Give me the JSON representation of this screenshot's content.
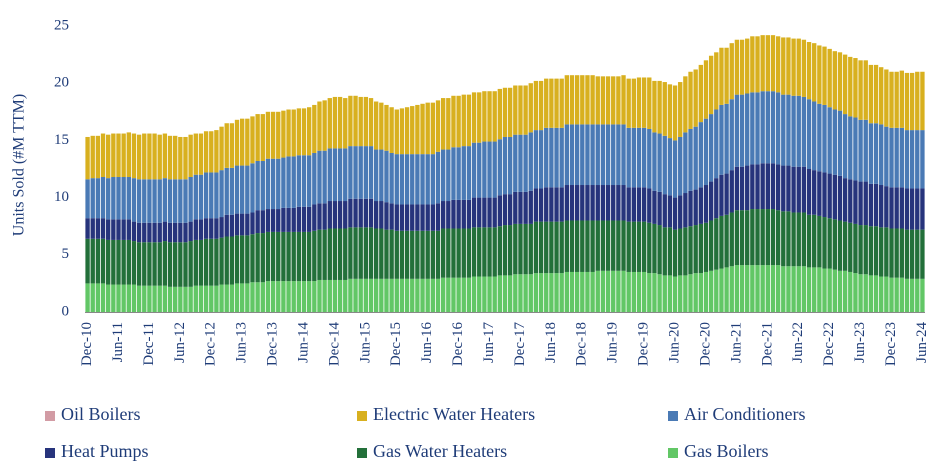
{
  "chart_data": {
    "type": "stacked_bar",
    "y_label": "Units Sold (#M TTM)",
    "ylim": [
      0,
      25
    ],
    "yticks": [
      0,
      5,
      10,
      15,
      20,
      25
    ],
    "categories": [
      "Dec-10",
      null,
      null,
      null,
      null,
      null,
      "Jun-11",
      null,
      null,
      null,
      null,
      null,
      "Dec-11",
      null,
      null,
      null,
      null,
      null,
      "Jun-12",
      null,
      null,
      null,
      null,
      null,
      "Dec-12",
      null,
      null,
      null,
      null,
      null,
      "Jun-13",
      null,
      null,
      null,
      null,
      null,
      "Dec-13",
      null,
      null,
      null,
      null,
      null,
      "Jun-14",
      null,
      null,
      null,
      null,
      null,
      "Dec-14",
      null,
      null,
      null,
      null,
      null,
      "Jun-15",
      null,
      null,
      null,
      null,
      null,
      "Dec-15",
      null,
      null,
      null,
      null,
      null,
      "Jun-16",
      null,
      null,
      null,
      null,
      null,
      "Dec-16",
      null,
      null,
      null,
      null,
      null,
      "Jun-17",
      null,
      null,
      null,
      null,
      null,
      "Dec-17",
      null,
      null,
      null,
      null,
      null,
      "Jun-18",
      null,
      null,
      null,
      null,
      null,
      "Dec-18",
      null,
      null,
      null,
      null,
      null,
      "Jun-19",
      null,
      null,
      null,
      null,
      null,
      "Dec-19",
      null,
      null,
      null,
      null,
      null,
      "Jun-20",
      null,
      null,
      null,
      null,
      null,
      "Dec-20",
      null,
      null,
      null,
      null,
      null,
      "Jun-21",
      null,
      null,
      null,
      null,
      null,
      "Dec-21",
      null,
      null,
      null,
      null,
      null,
      "Jun-22",
      null,
      null,
      null,
      null,
      null,
      "Dec-22",
      null,
      null,
      null,
      null,
      null,
      "Jun-23",
      null,
      null,
      null,
      null,
      null,
      "Dec-23",
      null,
      null,
      null,
      null,
      null,
      "Jun-24"
    ],
    "series": [
      {
        "name": "Oil Boilers",
        "color": "#d29ba4",
        "values": [
          0,
          0,
          0,
          0,
          0,
          0,
          0,
          0,
          0,
          0,
          0,
          0,
          0,
          0,
          0,
          0,
          0,
          0,
          0,
          0,
          0,
          0,
          0,
          0,
          0,
          0,
          0,
          0,
          0,
          0,
          0,
          0,
          0,
          0,
          0,
          0,
          0,
          0,
          0,
          0,
          0,
          0,
          0,
          0,
          0,
          0,
          0,
          0,
          0,
          0,
          0,
          0,
          0,
          0,
          0,
          0,
          0,
          0,
          0,
          0,
          0,
          0,
          0,
          0,
          0,
          0,
          0,
          0,
          0,
          0,
          0,
          0,
          0,
          0,
          0,
          0,
          0,
          0,
          0,
          0,
          0,
          0,
          0,
          0,
          0,
          0,
          0,
          0,
          0,
          0,
          0,
          0,
          0,
          0,
          0,
          0,
          0,
          0,
          0,
          0,
          0,
          0,
          0,
          0,
          0,
          0,
          0,
          0,
          0,
          0,
          0,
          0,
          0,
          0,
          0,
          0,
          0,
          0,
          0,
          0,
          0,
          0,
          0,
          0,
          0,
          0,
          0,
          0,
          0,
          0,
          0,
          0,
          0,
          0,
          0,
          0,
          0,
          0,
          0,
          0,
          0,
          0,
          0,
          0,
          0,
          0,
          0,
          0,
          0,
          0,
          0,
          0,
          0,
          0,
          0,
          0,
          0,
          0,
          0,
          0,
          0,
          0,
          0
        ]
      },
      {
        "name": "Electric Water Heaters",
        "color": "#d8b01f",
        "values": [
          3.7,
          3.7,
          3.7,
          3.8,
          3.8,
          3.8,
          3.8,
          3.8,
          3.9,
          3.9,
          3.9,
          4.0,
          4.0,
          4.0,
          3.9,
          3.9,
          3.8,
          3.8,
          3.7,
          3.7,
          3.7,
          3.6,
          3.6,
          3.6,
          3.6,
          3.7,
          3.8,
          3.9,
          3.9,
          4.0,
          4.1,
          4.1,
          4.1,
          4.1,
          4.1,
          4.1,
          4.1,
          4.1,
          4.1,
          4.1,
          4.1,
          4.1,
          4.1,
          4.2,
          4.2,
          4.3,
          4.4,
          4.4,
          4.5,
          4.5,
          4.4,
          4.4,
          4.4,
          4.3,
          4.3,
          4.2,
          4.2,
          4.1,
          4.0,
          4.0,
          3.9,
          4.0,
          4.1,
          4.2,
          4.3,
          4.4,
          4.5,
          4.5,
          4.5,
          4.5,
          4.5,
          4.5,
          4.5,
          4.5,
          4.5,
          4.4,
          4.4,
          4.4,
          4.4,
          4.4,
          4.4,
          4.3,
          4.3,
          4.3,
          4.3,
          4.3,
          4.3,
          4.3,
          4.3,
          4.3,
          4.3,
          4.3,
          4.3,
          4.3,
          4.3,
          4.3,
          4.3,
          4.3,
          4.3,
          4.2,
          4.2,
          4.2,
          4.2,
          4.2,
          4.3,
          4.3,
          4.3,
          4.4,
          4.4,
          4.5,
          4.5,
          4.6,
          4.7,
          4.7,
          4.8,
          4.8,
          4.9,
          5.0,
          5.0,
          5.0,
          5.1,
          5.1,
          5.0,
          5.0,
          4.9,
          4.9,
          4.8,
          4.8,
          4.8,
          4.9,
          4.9,
          4.9,
          4.9,
          4.9,
          4.9,
          5.0,
          5.0,
          5.0,
          5.0,
          5.0,
          5.0,
          5.1,
          5.1,
          5.1,
          5.1,
          5.1,
          5.1,
          5.2,
          5.2,
          5.2,
          5.2,
          5.2,
          5.1,
          5.1,
          5.0,
          5.0,
          4.9,
          4.9,
          5.0,
          5.0,
          5.0,
          5.1,
          5.1
        ]
      },
      {
        "name": "Air Conditioners",
        "color": "#4a7ab5",
        "values": [
          3.4,
          3.5,
          3.5,
          3.6,
          3.6,
          3.7,
          3.7,
          3.7,
          3.7,
          3.8,
          3.8,
          3.8,
          3.8,
          3.8,
          3.8,
          3.8,
          3.8,
          3.8,
          3.8,
          3.8,
          3.9,
          3.9,
          3.9,
          4.0,
          4.0,
          4.0,
          4.1,
          4.1,
          4.1,
          4.2,
          4.2,
          4.2,
          4.3,
          4.3,
          4.3,
          4.4,
          4.4,
          4.4,
          4.4,
          4.5,
          4.5,
          4.5,
          4.5,
          4.5,
          4.5,
          4.6,
          4.6,
          4.6,
          4.6,
          4.6,
          4.6,
          4.6,
          4.6,
          4.6,
          4.6,
          4.6,
          4.5,
          4.5,
          4.5,
          4.4,
          4.4,
          4.4,
          4.4,
          4.4,
          4.4,
          4.4,
          4.4,
          4.4,
          4.5,
          4.5,
          4.5,
          4.6,
          4.6,
          4.7,
          4.7,
          4.8,
          4.8,
          4.9,
          4.9,
          4.9,
          4.9,
          5.0,
          5.0,
          5.0,
          5.0,
          5.0,
          5.1,
          5.1,
          5.1,
          5.2,
          5.2,
          5.2,
          5.2,
          5.3,
          5.3,
          5.3,
          5.3,
          5.3,
          5.3,
          5.3,
          5.3,
          5.3,
          5.3,
          5.3,
          5.3,
          5.2,
          5.2,
          5.2,
          5.2,
          5.2,
          5.1,
          5.1,
          5.1,
          5.0,
          5.0,
          5.1,
          5.3,
          5.4,
          5.5,
          5.7,
          5.8,
          5.9,
          6.0,
          6.1,
          6.1,
          6.2,
          6.3,
          6.3,
          6.3,
          6.3,
          6.3,
          6.3,
          6.3,
          6.3,
          6.3,
          6.2,
          6.2,
          6.2,
          6.2,
          6.1,
          6.1,
          6.0,
          5.9,
          5.9,
          5.8,
          5.7,
          5.7,
          5.6,
          5.5,
          5.5,
          5.4,
          5.4,
          5.3,
          5.3,
          5.3,
          5.2,
          5.2,
          5.2,
          5.2,
          5.1,
          5.1,
          5.1,
          5.1
        ]
      },
      {
        "name": "Heat Pumps",
        "color": "#27347c",
        "values": [
          1.8,
          1.8,
          1.8,
          1.8,
          1.8,
          1.8,
          1.8,
          1.8,
          1.8,
          1.7,
          1.7,
          1.7,
          1.7,
          1.7,
          1.7,
          1.7,
          1.7,
          1.7,
          1.7,
          1.7,
          1.7,
          1.8,
          1.8,
          1.8,
          1.8,
          1.8,
          1.8,
          1.9,
          1.9,
          1.9,
          1.9,
          1.9,
          1.9,
          2.0,
          2.0,
          2.0,
          2.0,
          2.0,
          2.1,
          2.1,
          2.1,
          2.2,
          2.2,
          2.2,
          2.3,
          2.3,
          2.3,
          2.4,
          2.4,
          2.4,
          2.4,
          2.5,
          2.5,
          2.5,
          2.5,
          2.5,
          2.4,
          2.4,
          2.4,
          2.3,
          2.3,
          2.3,
          2.3,
          2.3,
          2.3,
          2.3,
          2.3,
          2.3,
          2.4,
          2.4,
          2.4,
          2.5,
          2.5,
          2.5,
          2.5,
          2.6,
          2.6,
          2.6,
          2.6,
          2.6,
          2.7,
          2.7,
          2.7,
          2.8,
          2.8,
          2.8,
          2.9,
          2.9,
          2.9,
          3.0,
          3.0,
          3.0,
          3.0,
          3.1,
          3.1,
          3.1,
          3.1,
          3.1,
          3.1,
          3.1,
          3.1,
          3.1,
          3.1,
          3.1,
          3.1,
          3.0,
          3.0,
          3.0,
          3.0,
          3.0,
          2.9,
          2.9,
          2.9,
          2.8,
          2.8,
          2.9,
          3.0,
          3.1,
          3.1,
          3.2,
          3.3,
          3.4,
          3.5,
          3.6,
          3.6,
          3.7,
          3.8,
          3.8,
          3.9,
          3.9,
          3.9,
          4.0,
          4.0,
          4.0,
          4.0,
          4.0,
          4.0,
          4.0,
          4.0,
          4.0,
          4.0,
          3.9,
          3.9,
          3.9,
          3.9,
          3.9,
          3.9,
          3.8,
          3.8,
          3.8,
          3.8,
          3.8,
          3.7,
          3.7,
          3.7,
          3.6,
          3.6,
          3.6,
          3.6,
          3.6,
          3.6,
          3.6,
          3.6
        ]
      },
      {
        "name": "Gas Water Heaters",
        "color": "#23703a",
        "values": [
          3.9,
          3.9,
          3.9,
          3.9,
          3.9,
          3.9,
          3.9,
          3.9,
          3.9,
          3.8,
          3.8,
          3.8,
          3.8,
          3.8,
          3.8,
          3.9,
          3.9,
          3.9,
          3.9,
          3.9,
          4.0,
          4.0,
          4.0,
          4.1,
          4.1,
          4.1,
          4.1,
          4.2,
          4.2,
          4.2,
          4.2,
          4.2,
          4.2,
          4.3,
          4.3,
          4.3,
          4.3,
          4.3,
          4.3,
          4.3,
          4.3,
          4.3,
          4.3,
          4.3,
          4.4,
          4.4,
          4.4,
          4.5,
          4.5,
          4.5,
          4.5,
          4.5,
          4.5,
          4.5,
          4.5,
          4.5,
          4.4,
          4.4,
          4.3,
          4.3,
          4.2,
          4.2,
          4.2,
          4.2,
          4.2,
          4.2,
          4.2,
          4.2,
          4.2,
          4.3,
          4.3,
          4.3,
          4.3,
          4.3,
          4.3,
          4.3,
          4.3,
          4.3,
          4.3,
          4.3,
          4.3,
          4.4,
          4.4,
          4.4,
          4.4,
          4.4,
          4.4,
          4.5,
          4.5,
          4.5,
          4.5,
          4.5,
          4.5,
          4.5,
          4.5,
          4.5,
          4.5,
          4.5,
          4.5,
          4.4,
          4.4,
          4.4,
          4.4,
          4.4,
          4.4,
          4.4,
          4.4,
          4.4,
          4.4,
          4.4,
          4.3,
          4.3,
          4.2,
          4.2,
          4.1,
          4.1,
          4.2,
          4.2,
          4.2,
          4.3,
          4.3,
          4.4,
          4.5,
          4.6,
          4.6,
          4.7,
          4.8,
          4.8,
          4.8,
          4.9,
          4.9,
          4.9,
          4.9,
          4.9,
          4.8,
          4.8,
          4.8,
          4.7,
          4.7,
          4.7,
          4.6,
          4.6,
          4.5,
          4.5,
          4.4,
          4.4,
          4.4,
          4.3,
          4.3,
          4.3,
          4.3,
          4.3,
          4.3,
          4.3,
          4.3,
          4.3,
          4.3,
          4.3,
          4.3,
          4.3,
          4.3,
          4.3,
          4.3
        ]
      },
      {
        "name": "Gas Boilers",
        "color": "#62c766",
        "values": [
          2.5,
          2.5,
          2.5,
          2.5,
          2.4,
          2.4,
          2.4,
          2.4,
          2.4,
          2.4,
          2.3,
          2.3,
          2.3,
          2.3,
          2.3,
          2.3,
          2.2,
          2.2,
          2.2,
          2.2,
          2.2,
          2.3,
          2.3,
          2.3,
          2.3,
          2.3,
          2.4,
          2.4,
          2.4,
          2.5,
          2.5,
          2.5,
          2.6,
          2.6,
          2.6,
          2.7,
          2.7,
          2.7,
          2.7,
          2.7,
          2.7,
          2.7,
          2.7,
          2.7,
          2.7,
          2.8,
          2.8,
          2.8,
          2.8,
          2.8,
          2.8,
          2.9,
          2.9,
          2.9,
          2.9,
          2.9,
          2.9,
          2.9,
          2.9,
          2.9,
          2.9,
          2.9,
          2.9,
          2.9,
          2.9,
          2.9,
          2.9,
          2.9,
          2.9,
          3.0,
          3.0,
          3.0,
          3.0,
          3.0,
          3.0,
          3.1,
          3.1,
          3.1,
          3.1,
          3.1,
          3.2,
          3.2,
          3.2,
          3.3,
          3.3,
          3.3,
          3.3,
          3.4,
          3.4,
          3.4,
          3.4,
          3.4,
          3.4,
          3.5,
          3.5,
          3.5,
          3.5,
          3.5,
          3.5,
          3.6,
          3.6,
          3.6,
          3.6,
          3.6,
          3.6,
          3.5,
          3.5,
          3.5,
          3.5,
          3.4,
          3.4,
          3.3,
          3.2,
          3.2,
          3.1,
          3.2,
          3.2,
          3.3,
          3.4,
          3.4,
          3.5,
          3.6,
          3.7,
          3.8,
          3.9,
          4.0,
          4.1,
          4.1,
          4.1,
          4.1,
          4.1,
          4.1,
          4.1,
          4.1,
          4.1,
          4.0,
          4.0,
          4.0,
          4.0,
          4.0,
          3.9,
          3.9,
          3.9,
          3.8,
          3.8,
          3.7,
          3.6,
          3.6,
          3.5,
          3.4,
          3.3,
          3.3,
          3.2,
          3.2,
          3.1,
          3.1,
          3.0,
          3.0,
          3.0,
          2.9,
          2.9,
          2.9,
          2.9
        ]
      }
    ]
  }
}
